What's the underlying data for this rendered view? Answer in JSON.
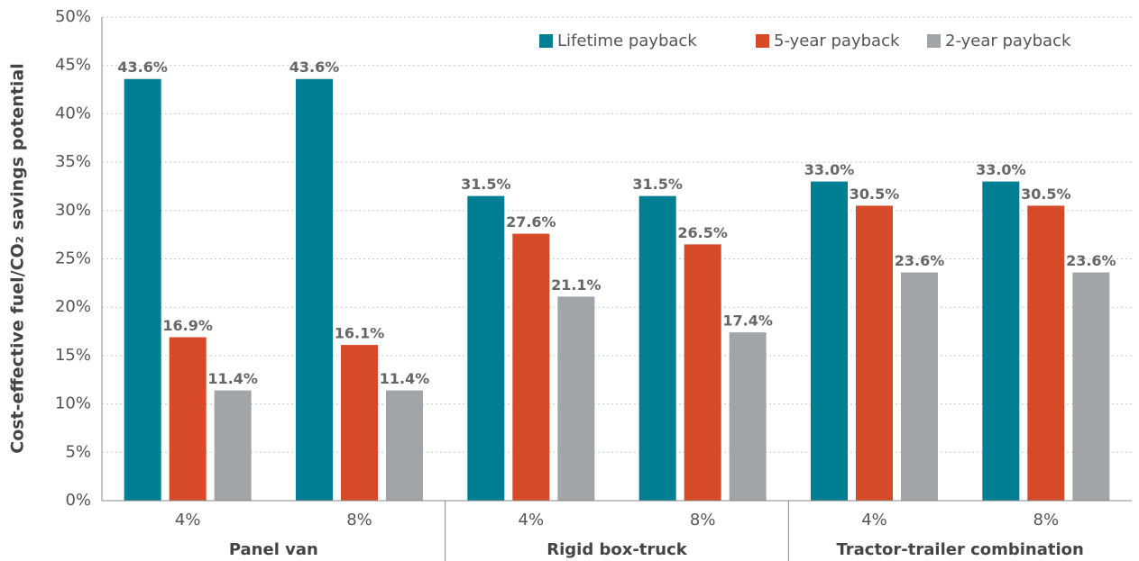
{
  "chart_data": {
    "type": "bar",
    "y_label": "Cost-effective fuel/CO₂ savings potential",
    "categories": [
      "4%",
      "8%",
      "4%",
      "8%",
      "4%",
      "8%"
    ],
    "groups": [
      "Panel van",
      "Rigid box-truck",
      "Tractor-trailer combination"
    ],
    "series": [
      {
        "name": "Lifetime payback",
        "color": "#007f94",
        "values": [
          43.6,
          43.6,
          31.5,
          31.5,
          33.0,
          33.0
        ],
        "value_labels": [
          "43.6%",
          "43.6%",
          "31.5%",
          "31.5%",
          "33.0%",
          "33.0%"
        ]
      },
      {
        "name": "5-year payback",
        "color": "#d64a27",
        "values": [
          16.9,
          16.1,
          27.6,
          26.5,
          30.5,
          30.5
        ],
        "value_labels": [
          "16.9%",
          "16.1%",
          "27.6%",
          "26.5%",
          "30.5%",
          "30.5%"
        ]
      },
      {
        "name": "2-year payback",
        "color": "#a2a5a8",
        "values": [
          11.4,
          11.4,
          21.1,
          17.4,
          23.6,
          23.6
        ],
        "value_labels": [
          "11.4%",
          "11.4%",
          "21.1%",
          "17.4%",
          "23.6%",
          "23.6%"
        ]
      }
    ],
    "ylim": [
      0,
      50
    ],
    "yticks": [
      {
        "value": 0,
        "label": "0%"
      },
      {
        "value": 5,
        "label": "5%"
      },
      {
        "value": 10,
        "label": "10%"
      },
      {
        "value": 15,
        "label": "15%"
      },
      {
        "value": 20,
        "label": "20%"
      },
      {
        "value": 25,
        "label": "25%"
      },
      {
        "value": 30,
        "label": "30%"
      },
      {
        "value": 35,
        "label": "35%"
      },
      {
        "value": 40,
        "label": "40%"
      },
      {
        "value": 45,
        "label": "45%"
      },
      {
        "value": 50,
        "label": "50%"
      }
    ],
    "grid": true,
    "legend": "top-right"
  }
}
